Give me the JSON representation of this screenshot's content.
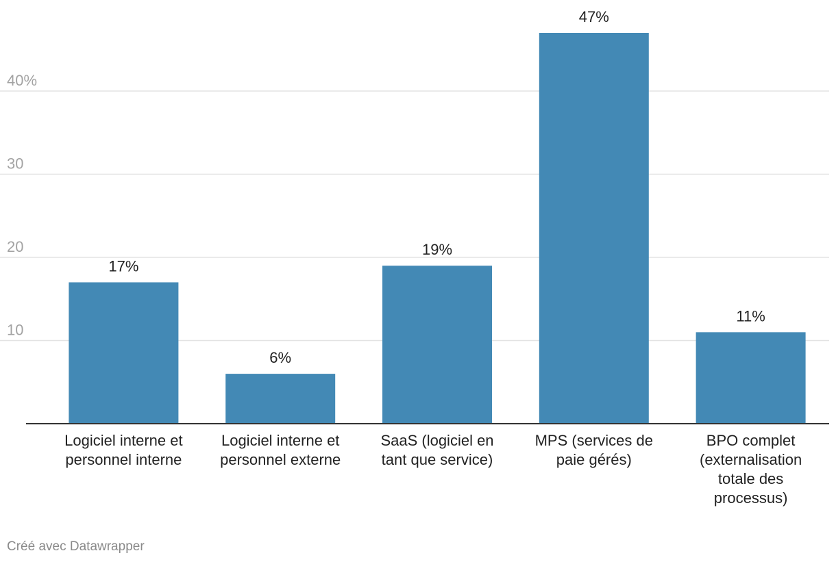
{
  "chart_data": {
    "type": "bar",
    "categories": [
      "Logiciel interne et personnel interne",
      "Logiciel interne et personnel externe",
      "SaaS (logiciel en tant que service)",
      "MPS (services de paie gérés)",
      "BPO complet (externalisation totale des processus)"
    ],
    "category_lines": [
      [
        "Logiciel interne et",
        "personnel interne"
      ],
      [
        "Logiciel interne et",
        "personnel externe"
      ],
      [
        "SaaS (logiciel en",
        "tant que service)"
      ],
      [
        "MPS (services de",
        "paie gérés)"
      ],
      [
        "BPO complet",
        "(externalisation",
        "totale des",
        "processus)"
      ]
    ],
    "values": [
      17,
      6,
      19,
      47,
      11
    ],
    "value_labels": [
      "17%",
      "6%",
      "19%",
      "47%",
      "11%"
    ],
    "yticks": [
      10,
      20,
      30,
      40
    ],
    "ytick_labels": [
      "10",
      "20",
      "30",
      "40%"
    ],
    "ylim": [
      0,
      47
    ],
    "grid": true,
    "bar_color": "#4389b5",
    "title": "",
    "xlabel": "",
    "ylabel": ""
  },
  "footer": {
    "credit": "Créé avec Datawrapper"
  }
}
